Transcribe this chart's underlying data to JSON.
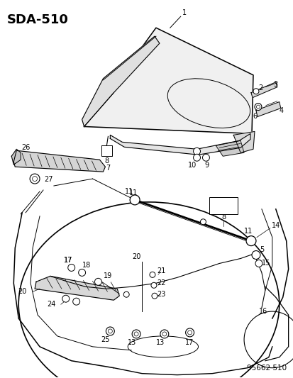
{
  "title": "SDA-510",
  "footer": "95662 510",
  "bg_color": "#ffffff",
  "line_color": "#000000",
  "title_fontsize": 13,
  "footer_fontsize": 7.5,
  "label_fontsize": 7,
  "fig_width": 4.14,
  "fig_height": 5.33,
  "dpi": 100
}
